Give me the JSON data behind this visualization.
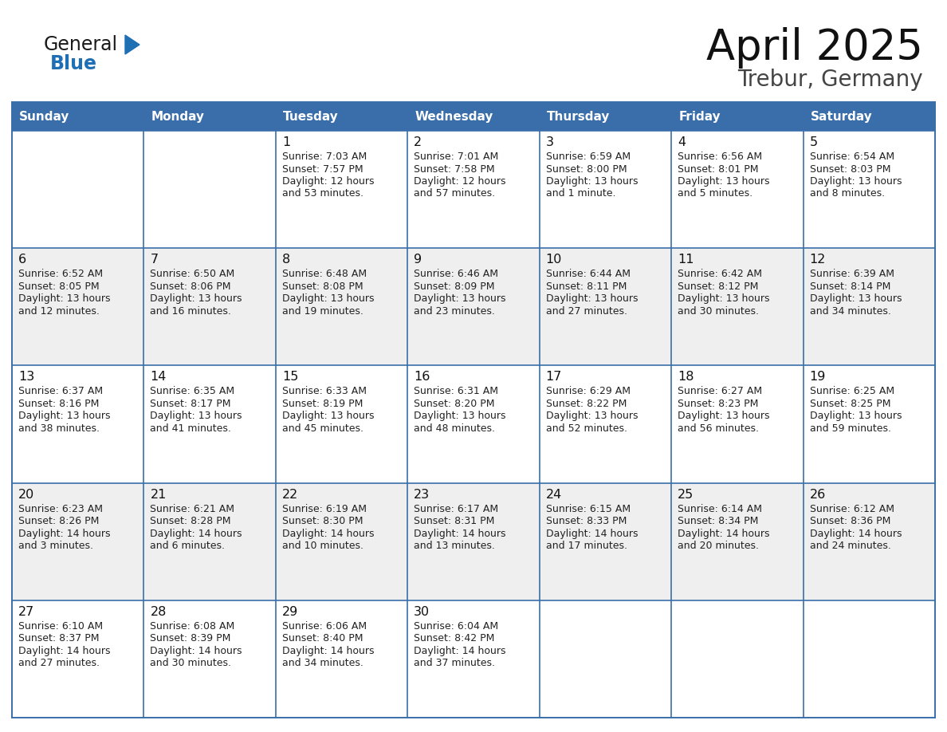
{
  "title": "April 2025",
  "subtitle": "Trebur, Germany",
  "header_bg_color": "#3A6EAA",
  "header_text_color": "#FFFFFF",
  "row_bg_even": "#EFEFEF",
  "row_bg_odd": "#FFFFFF",
  "border_color": "#3A6EAA",
  "text_color": "#222222",
  "days_of_week": [
    "Sunday",
    "Monday",
    "Tuesday",
    "Wednesday",
    "Thursday",
    "Friday",
    "Saturday"
  ],
  "calendar": [
    [
      {
        "day": "",
        "sunrise": "",
        "sunset": "",
        "daylight": ""
      },
      {
        "day": "",
        "sunrise": "",
        "sunset": "",
        "daylight": ""
      },
      {
        "day": "1",
        "sunrise": "7:03 AM",
        "sunset": "7:57 PM",
        "daylight": "12 hours and 53 minutes."
      },
      {
        "day": "2",
        "sunrise": "7:01 AM",
        "sunset": "7:58 PM",
        "daylight": "12 hours and 57 minutes."
      },
      {
        "day": "3",
        "sunrise": "6:59 AM",
        "sunset": "8:00 PM",
        "daylight": "13 hours and 1 minute."
      },
      {
        "day": "4",
        "sunrise": "6:56 AM",
        "sunset": "8:01 PM",
        "daylight": "13 hours and 5 minutes."
      },
      {
        "day": "5",
        "sunrise": "6:54 AM",
        "sunset": "8:03 PM",
        "daylight": "13 hours and 8 minutes."
      }
    ],
    [
      {
        "day": "6",
        "sunrise": "6:52 AM",
        "sunset": "8:05 PM",
        "daylight": "13 hours and 12 minutes."
      },
      {
        "day": "7",
        "sunrise": "6:50 AM",
        "sunset": "8:06 PM",
        "daylight": "13 hours and 16 minutes."
      },
      {
        "day": "8",
        "sunrise": "6:48 AM",
        "sunset": "8:08 PM",
        "daylight": "13 hours and 19 minutes."
      },
      {
        "day": "9",
        "sunrise": "6:46 AM",
        "sunset": "8:09 PM",
        "daylight": "13 hours and 23 minutes."
      },
      {
        "day": "10",
        "sunrise": "6:44 AM",
        "sunset": "8:11 PM",
        "daylight": "13 hours and 27 minutes."
      },
      {
        "day": "11",
        "sunrise": "6:42 AM",
        "sunset": "8:12 PM",
        "daylight": "13 hours and 30 minutes."
      },
      {
        "day": "12",
        "sunrise": "6:39 AM",
        "sunset": "8:14 PM",
        "daylight": "13 hours and 34 minutes."
      }
    ],
    [
      {
        "day": "13",
        "sunrise": "6:37 AM",
        "sunset": "8:16 PM",
        "daylight": "13 hours and 38 minutes."
      },
      {
        "day": "14",
        "sunrise": "6:35 AM",
        "sunset": "8:17 PM",
        "daylight": "13 hours and 41 minutes."
      },
      {
        "day": "15",
        "sunrise": "6:33 AM",
        "sunset": "8:19 PM",
        "daylight": "13 hours and 45 minutes."
      },
      {
        "day": "16",
        "sunrise": "6:31 AM",
        "sunset": "8:20 PM",
        "daylight": "13 hours and 48 minutes."
      },
      {
        "day": "17",
        "sunrise": "6:29 AM",
        "sunset": "8:22 PM",
        "daylight": "13 hours and 52 minutes."
      },
      {
        "day": "18",
        "sunrise": "6:27 AM",
        "sunset": "8:23 PM",
        "daylight": "13 hours and 56 minutes."
      },
      {
        "day": "19",
        "sunrise": "6:25 AM",
        "sunset": "8:25 PM",
        "daylight": "13 hours and 59 minutes."
      }
    ],
    [
      {
        "day": "20",
        "sunrise": "6:23 AM",
        "sunset": "8:26 PM",
        "daylight": "14 hours and 3 minutes."
      },
      {
        "day": "21",
        "sunrise": "6:21 AM",
        "sunset": "8:28 PM",
        "daylight": "14 hours and 6 minutes."
      },
      {
        "day": "22",
        "sunrise": "6:19 AM",
        "sunset": "8:30 PM",
        "daylight": "14 hours and 10 minutes."
      },
      {
        "day": "23",
        "sunrise": "6:17 AM",
        "sunset": "8:31 PM",
        "daylight": "14 hours and 13 minutes."
      },
      {
        "day": "24",
        "sunrise": "6:15 AM",
        "sunset": "8:33 PM",
        "daylight": "14 hours and 17 minutes."
      },
      {
        "day": "25",
        "sunrise": "6:14 AM",
        "sunset": "8:34 PM",
        "daylight": "14 hours and 20 minutes."
      },
      {
        "day": "26",
        "sunrise": "6:12 AM",
        "sunset": "8:36 PM",
        "daylight": "14 hours and 24 minutes."
      }
    ],
    [
      {
        "day": "27",
        "sunrise": "6:10 AM",
        "sunset": "8:37 PM",
        "daylight": "14 hours and 27 minutes."
      },
      {
        "day": "28",
        "sunrise": "6:08 AM",
        "sunset": "8:39 PM",
        "daylight": "14 hours and 30 minutes."
      },
      {
        "day": "29",
        "sunrise": "6:06 AM",
        "sunset": "8:40 PM",
        "daylight": "14 hours and 34 minutes."
      },
      {
        "day": "30",
        "sunrise": "6:04 AM",
        "sunset": "8:42 PM",
        "daylight": "14 hours and 37 minutes."
      },
      {
        "day": "",
        "sunrise": "",
        "sunset": "",
        "daylight": ""
      },
      {
        "day": "",
        "sunrise": "",
        "sunset": "",
        "daylight": ""
      },
      {
        "day": "",
        "sunrise": "",
        "sunset": "",
        "daylight": ""
      }
    ]
  ]
}
